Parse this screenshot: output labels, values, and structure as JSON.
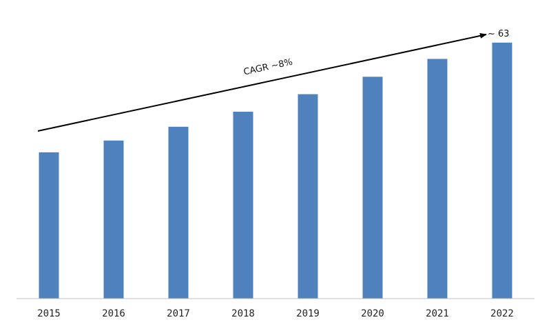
{
  "chart_data": {
    "type": "bar",
    "categories": [
      "2015",
      "2016",
      "2017",
      "2018",
      "2019",
      "2020",
      "2021",
      "2022"
    ],
    "values": [
      36,
      38.9,
      42.3,
      46,
      50.3,
      54.6,
      59,
      63
    ],
    "ylim": [
      0,
      65
    ],
    "grid": false,
    "bar_color": "#4f81bd",
    "annotations": {
      "trend_label": "CAGR ~8%",
      "end_value_label": "~ 63"
    }
  }
}
